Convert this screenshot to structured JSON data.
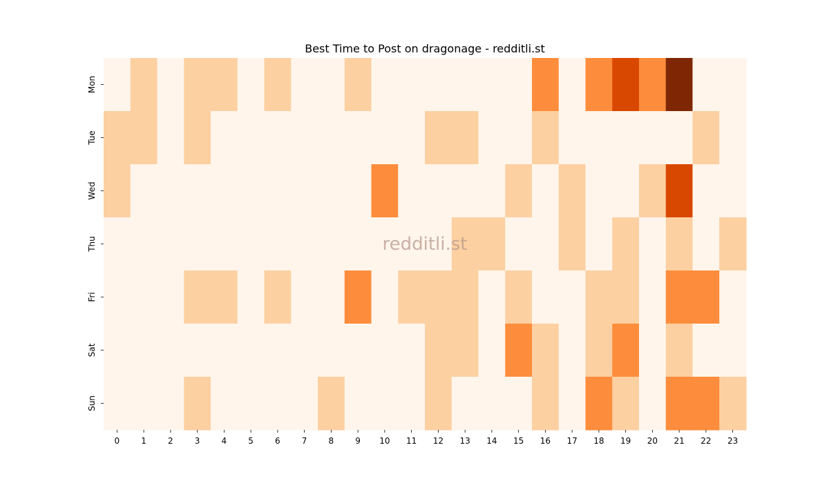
{
  "chart_data": {
    "type": "heatmap",
    "title": "Best Time to Post on dragonage - redditli.st",
    "watermark": "redditli.st",
    "xlabel": "",
    "ylabel": "",
    "x": [
      "0",
      "1",
      "2",
      "3",
      "4",
      "5",
      "6",
      "7",
      "8",
      "9",
      "10",
      "11",
      "12",
      "13",
      "14",
      "15",
      "16",
      "17",
      "18",
      "19",
      "20",
      "21",
      "22",
      "23"
    ],
    "y": [
      "Mon",
      "Tue",
      "Wed",
      "Thu",
      "Fri",
      "Sat",
      "Sun"
    ],
    "values": [
      [
        0,
        1,
        0,
        1,
        1,
        0,
        1,
        0,
        0,
        1,
        0,
        0,
        0,
        0,
        0,
        0,
        3,
        0,
        3,
        4,
        3,
        5,
        0,
        0
      ],
      [
        1,
        1,
        0,
        1,
        0,
        0,
        0,
        0,
        0,
        0,
        0,
        0,
        1,
        1,
        0,
        0,
        1,
        0,
        0,
        0,
        0,
        0,
        1,
        0
      ],
      [
        1,
        0,
        0,
        0,
        0,
        0,
        0,
        0,
        0,
        0,
        3,
        0,
        0,
        0,
        0,
        1,
        0,
        1,
        0,
        0,
        1,
        4,
        0,
        0
      ],
      [
        0,
        0,
        0,
        0,
        0,
        0,
        0,
        0,
        0,
        0,
        0,
        0,
        0,
        1,
        1,
        0,
        0,
        1,
        0,
        1,
        0,
        1,
        0,
        1
      ],
      [
        0,
        0,
        0,
        1,
        1,
        0,
        1,
        0,
        0,
        3,
        0,
        1,
        1,
        1,
        0,
        1,
        0,
        0,
        1,
        1,
        0,
        3,
        3,
        0
      ],
      [
        0,
        0,
        0,
        0,
        0,
        0,
        0,
        0,
        0,
        0,
        0,
        0,
        1,
        1,
        0,
        3,
        1,
        0,
        1,
        3,
        0,
        1,
        0,
        0
      ],
      [
        0,
        0,
        0,
        1,
        0,
        0,
        0,
        0,
        1,
        0,
        0,
        0,
        1,
        0,
        0,
        0,
        1,
        0,
        3,
        1,
        0,
        3,
        3,
        1
      ]
    ],
    "value_range": [
      0,
      5
    ],
    "colormap": "Oranges",
    "level_colors": [
      "#fff5eb",
      "#fdd0a2",
      "#fdae6b",
      "#fd8d3c",
      "#d94801",
      "#7f2704"
    ],
    "grid": false,
    "legend": "none"
  }
}
